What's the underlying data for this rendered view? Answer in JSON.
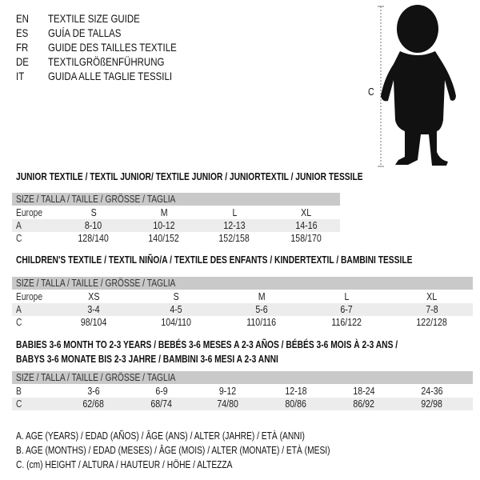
{
  "languages": [
    {
      "code": "EN",
      "text": "TEXTILE SIZE GUIDE"
    },
    {
      "code": "ES",
      "text": "GUÍA DE TALLAS"
    },
    {
      "code": "FR",
      "text": "GUIDE DES TAILLES TEXTILE"
    },
    {
      "code": "DE",
      "text": "TEXTILGRÖßENFÜHRUNG"
    },
    {
      "code": "IT",
      "text": "GUIDA ALLE TAGLIE TESSILI"
    }
  ],
  "figure": {
    "label": "C",
    "icon": "child-silhouette"
  },
  "sections": [
    {
      "title": "JUNIOR TEXTILE / TEXTIL JUNIOR/ TEXTILE JUNIOR / JUNIORTEXTIL / JUNIOR TESSILE",
      "header": "SIZE / TALLA / TAILLE / GRÖSSE / TAGLIA",
      "rows": [
        {
          "label": "Europe",
          "values": [
            "S",
            "M",
            "L",
            "XL"
          ]
        },
        {
          "label": "A",
          "values": [
            "8-10",
            "10-12",
            "12-13",
            "14-16"
          ]
        },
        {
          "label": "C",
          "values": [
            "128/140",
            "140/152",
            "152/158",
            "158/170"
          ]
        }
      ]
    },
    {
      "title": "CHILDREN'S TEXTILE / TEXTIL NIÑO/A / TEXTILE DES ENFANTS / KINDERTEXTIL / BAMBINI TESSILE",
      "header": "SIZE / TALLA / TAILLE / GRÖSSE / TAGLIA",
      "rows": [
        {
          "label": "Europe",
          "values": [
            "XS",
            "S",
            "M",
            "L",
            "XL"
          ]
        },
        {
          "label": "A",
          "values": [
            "3-4",
            "4-5",
            "5-6",
            "6-7",
            "7-8"
          ]
        },
        {
          "label": "C",
          "values": [
            "98/104",
            "104/110",
            "110/116",
            "116/122",
            "122/128"
          ]
        }
      ]
    },
    {
      "title": "BABIES 3-6 MONTH TO 2-3 YEARS / BEBÉS 3-6 MESES A 2-3 AÑOS / BÉBÉS 3-6 MOIS À 2-3 ANS /",
      "title2": "BABYS 3-6 MONATE BIS 2-3 JAHRE / BAMBINI 3-6 MESI A 2-3 ANNI",
      "header": "SIZE / TALLA / TAILLE / GRÖSSE / TAGLIA",
      "rows": [
        {
          "label": "B",
          "values": [
            "3-6",
            "6-9",
            "9-12",
            "12-18",
            "18-24",
            "24-36"
          ]
        },
        {
          "label": "C",
          "values": [
            "62/68",
            "68/74",
            "74/80",
            "80/86",
            "86/92",
            "92/98"
          ]
        }
      ]
    }
  ],
  "legend": [
    "A. AGE (YEARS) / EDAD (AÑOS) / ÂGE (ANS) / ALTER (JAHRE) / ETÀ (ANNI)",
    "B. AGE (MONTHS) / EDAD (MESES) / ÂGE (MOIS) / ALTER (MONATE) / ETÀ (MESI)",
    "C. (cm) HEIGHT / ALTURA / HAUTEUR / HÖHE / ALTEZZA"
  ]
}
